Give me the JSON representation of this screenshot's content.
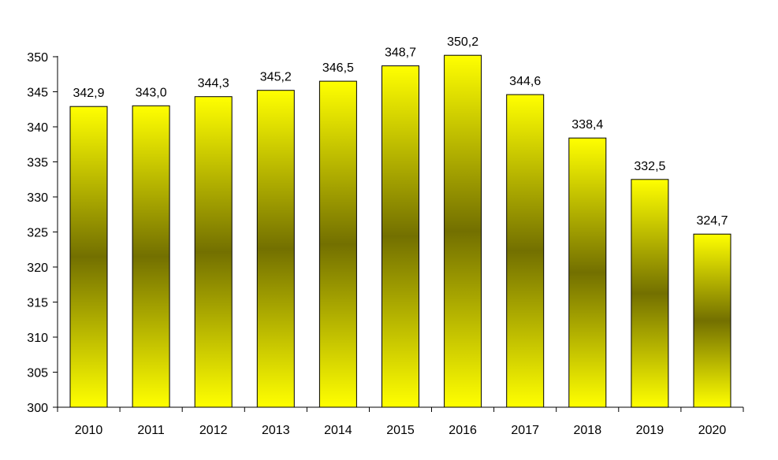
{
  "chart_data": {
    "type": "bar",
    "categories": [
      "2010",
      "2011",
      "2012",
      "2013",
      "2014",
      "2015",
      "2016",
      "2017",
      "2018",
      "2019",
      "2020"
    ],
    "values": [
      342.9,
      343.0,
      344.3,
      345.2,
      346.5,
      348.7,
      350.2,
      344.6,
      338.4,
      332.5,
      324.7
    ],
    "value_labels": [
      "342,9",
      "343,0",
      "344,3",
      "345,2",
      "346,5",
      "348,7",
      "350,2",
      "344,6",
      "338,4",
      "332,5",
      "324,7"
    ],
    "yticks": [
      "300",
      "305",
      "310",
      "315",
      "320",
      "325",
      "330",
      "335",
      "340",
      "345",
      "350"
    ],
    "ylim": [
      300,
      350
    ],
    "title": "",
    "xlabel": "",
    "ylabel": "",
    "grid": false,
    "colors": {
      "bar_light": "#ffff00",
      "bar_dark": "#737000",
      "border": "#000000"
    }
  }
}
